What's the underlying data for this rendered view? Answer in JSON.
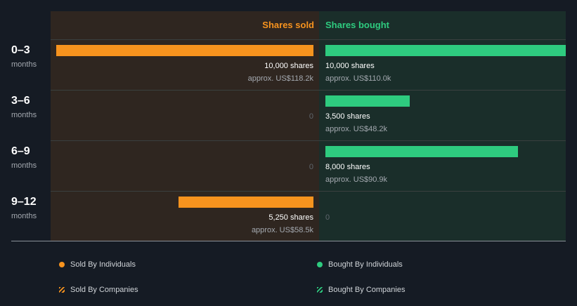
{
  "header": {
    "sold_label": "Shares sold",
    "bought_label": "Shares bought"
  },
  "colors": {
    "sold": "#f7931e",
    "bought": "#2ecb7f"
  },
  "chart_data": {
    "type": "bar",
    "orientation": "horizontal",
    "categories": [
      "0–3 months",
      "3–6 months",
      "6–9 months",
      "9–12 months"
    ],
    "series": [
      {
        "name": "Shares sold",
        "values": [
          10000,
          0,
          0,
          5250
        ]
      },
      {
        "name": "Shares bought",
        "values": [
          10000,
          3500,
          8000,
          0
        ]
      }
    ],
    "xlim": [
      0,
      10000
    ]
  },
  "rows": [
    {
      "range": "0–3",
      "unit": "months",
      "sold": {
        "shares": 10000,
        "shares_label": "10,000 shares",
        "value_label": "approx. US$118.2k"
      },
      "bought": {
        "shares": 10000,
        "shares_label": "10,000 shares",
        "value_label": "approx. US$110.0k"
      }
    },
    {
      "range": "3–6",
      "unit": "months",
      "sold": {
        "shares": 0,
        "shares_label": "0",
        "value_label": ""
      },
      "bought": {
        "shares": 3500,
        "shares_label": "3,500 shares",
        "value_label": "approx. US$48.2k"
      }
    },
    {
      "range": "6–9",
      "unit": "months",
      "sold": {
        "shares": 0,
        "shares_label": "0",
        "value_label": ""
      },
      "bought": {
        "shares": 8000,
        "shares_label": "8,000 shares",
        "value_label": "approx. US$90.9k"
      }
    },
    {
      "range": "9–12",
      "unit": "months",
      "sold": {
        "shares": 5250,
        "shares_label": "5,250 shares",
        "value_label": "approx. US$58.5k"
      },
      "bought": {
        "shares": 0,
        "shares_label": "0",
        "value_label": ""
      }
    }
  ],
  "legend": {
    "sold_individuals": "Sold By Individuals",
    "bought_individuals": "Bought By Individuals",
    "sold_companies": "Sold By Companies",
    "bought_companies": "Bought By Companies"
  }
}
